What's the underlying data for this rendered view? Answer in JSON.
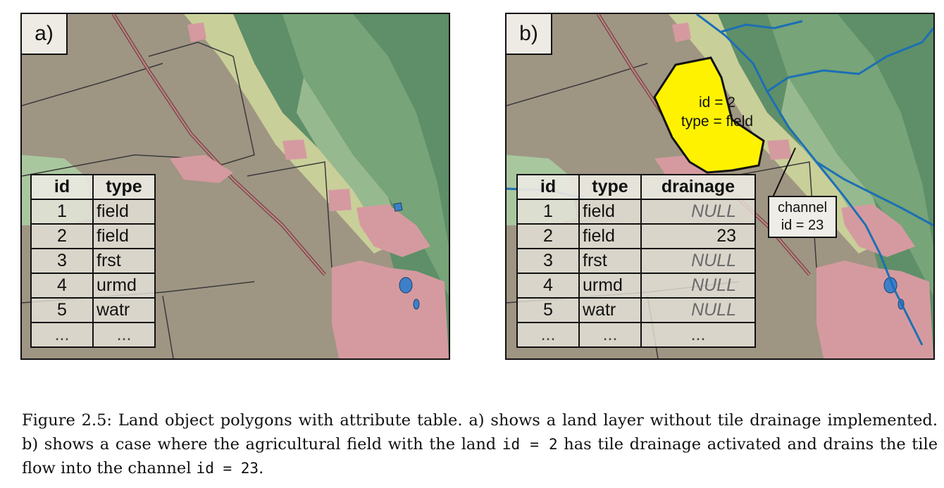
{
  "panel_a": {
    "label": "a)",
    "table": {
      "headers": {
        "id": "id",
        "type": "type"
      },
      "rows": [
        {
          "id": "1",
          "type": "field"
        },
        {
          "id": "2",
          "type": "field"
        },
        {
          "id": "3",
          "type": "frst"
        },
        {
          "id": "4",
          "type": "urmd"
        },
        {
          "id": "5",
          "type": "watr"
        },
        {
          "id": "...",
          "type": "..."
        }
      ]
    }
  },
  "panel_b": {
    "label": "b)",
    "table": {
      "headers": {
        "id": "id",
        "type": "type",
        "drainage": "drainage"
      },
      "rows": [
        {
          "id": "1",
          "type": "field",
          "drainage": "NULL"
        },
        {
          "id": "2",
          "type": "field",
          "drainage": "23"
        },
        {
          "id": "3",
          "type": "frst",
          "drainage": "NULL"
        },
        {
          "id": "4",
          "type": "urmd",
          "drainage": "NULL"
        },
        {
          "id": "5",
          "type": "watr",
          "drainage": "NULL"
        },
        {
          "id": "...",
          "type": "...",
          "drainage": "..."
        }
      ]
    },
    "highlight": {
      "line1": "id = 2",
      "line2": "type = field",
      "fill_color": "#fff200"
    },
    "channel": {
      "line1": "channel",
      "line2": "id = 23",
      "color": "#1c6fb5"
    }
  },
  "colors": {
    "field": "#9f9583",
    "forest": "#97b98f",
    "forest_dark": "#5e8f68",
    "urban": "#d59aa0",
    "water": "#3d7fc9",
    "meadow": "#c9cf99"
  },
  "caption": {
    "part1": "Figure 2.5: Land object polygons with attribute table. a) shows a land layer without tile drainage implemented. b) shows a case where the agricultural field with the land ",
    "code1": "id = 2",
    "part2": " has tile drainage activated and drains the tile flow into the channel ",
    "code2": "id = 23",
    "part3": "."
  }
}
